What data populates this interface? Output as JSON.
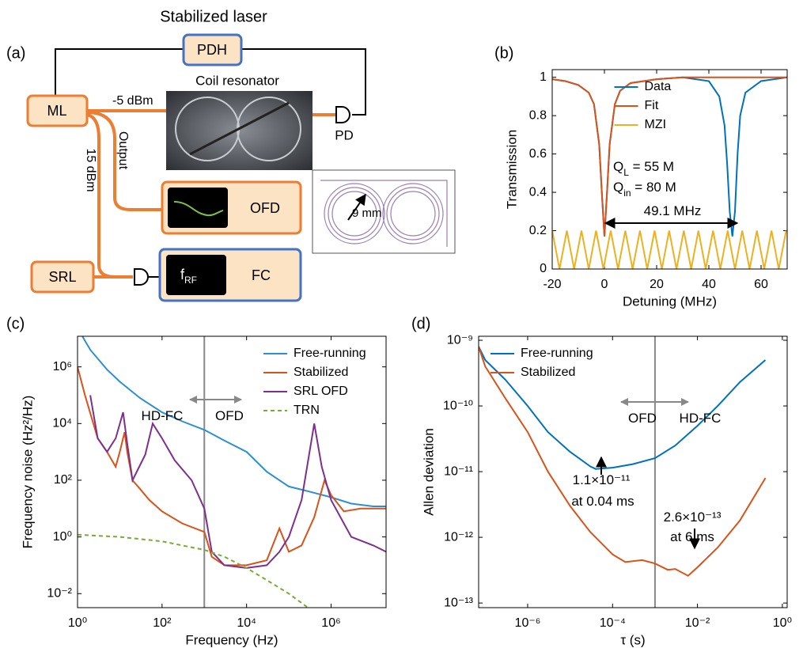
{
  "diagram": {
    "panel": "(a)",
    "title": "Stabilized laser",
    "coil_label": "Coil resonator",
    "nodes": [
      {
        "label": "PDH"
      },
      {
        "label": "ML"
      },
      {
        "label": "SRL"
      },
      {
        "label": "OFD"
      },
      {
        "label": "FC"
      }
    ],
    "labels": [
      "-5 dBm",
      "15 dBm",
      "Output",
      "PD",
      "9 mm"
    ],
    "rf": {
      "text": "f",
      "sub": "RF"
    }
  },
  "chart_data": [
    {
      "type": "line",
      "panel": "(b)",
      "xlabel": "Detuning (MHz)",
      "ylabel": "Transmission",
      "xscale": "linear",
      "yscale": "linear",
      "xlim": [
        -20,
        70
      ],
      "ylim": [
        0,
        1.04
      ],
      "xticks": [
        -20,
        0,
        20,
        40,
        60
      ],
      "yticks": [
        0,
        0.2,
        0.4,
        0.6,
        0.8,
        1
      ],
      "legend": "upper center",
      "series": [
        {
          "name": "Data",
          "color": "#0072bd",
          "x": [
            -20,
            -15,
            -10,
            -6,
            -4,
            -2,
            -1,
            0,
            1,
            2,
            4,
            6,
            10,
            20,
            30,
            40,
            44,
            46,
            47,
            48,
            49,
            50,
            51,
            52,
            54,
            60,
            70
          ],
          "values": [
            0.99,
            0.98,
            0.96,
            0.92,
            0.86,
            0.65,
            0.4,
            0.17,
            0.4,
            0.65,
            0.86,
            0.93,
            0.97,
            0.99,
            1.0,
            0.98,
            0.9,
            0.75,
            0.55,
            0.3,
            0.17,
            0.3,
            0.6,
            0.8,
            0.92,
            0.98,
            1.0
          ]
        },
        {
          "name": "Fit",
          "color": "#d95319",
          "x": [
            -20,
            -15,
            -10,
            -6,
            -4,
            -2,
            -1,
            0,
            1,
            2,
            4,
            6,
            10,
            20,
            30,
            70
          ],
          "values": [
            0.99,
            0.98,
            0.96,
            0.92,
            0.86,
            0.65,
            0.4,
            0.17,
            0.4,
            0.65,
            0.86,
            0.93,
            0.97,
            0.99,
            1.0,
            1.0
          ]
        },
        {
          "name": "MZI",
          "color": "#edb120",
          "x": [
            -20,
            -17.2,
            -14.4,
            -11.6,
            -8.8,
            -6,
            -3.2,
            -0.4,
            2.4,
            5.2,
            8,
            10.8,
            13.6,
            16.4,
            19.2,
            22,
            24.8,
            27.6,
            30.4,
            33.2,
            36,
            38.8,
            41.6,
            44.4,
            47.2,
            50,
            52.8,
            55.6,
            58.4,
            61.2,
            64,
            66.8,
            69.6
          ],
          "values": [
            0.2,
            0,
            0.2,
            0,
            0.2,
            0,
            0.2,
            0,
            0.2,
            0,
            0.2,
            0,
            0.2,
            0,
            0.2,
            0,
            0.2,
            0,
            0.2,
            0,
            0.2,
            0,
            0.2,
            0,
            0.2,
            0,
            0.2,
            0,
            0.2,
            0,
            0.2,
            0,
            0.2
          ]
        }
      ],
      "annotations": [
        {
          "text": "Q",
          "sub": "L",
          "rest": " = 55 M"
        },
        {
          "text": "Q",
          "sub": "in",
          "rest": " = 80 M"
        },
        {
          "text": "49.1 MHz"
        }
      ]
    },
    {
      "type": "line",
      "panel": "(c)",
      "xlabel": "Frequency (Hz)",
      "ylabel": "Frequency noise (Hz²/Hz)",
      "xscale": "log",
      "yscale": "log",
      "xlim": [
        1,
        20000000
      ],
      "ylim": [
        0.0032,
        12000000
      ],
      "xticks": [
        {
          "value": 1,
          "label": "10⁰"
        },
        {
          "value": 100,
          "label": "10²"
        },
        {
          "value": 10000,
          "label": "10⁴"
        },
        {
          "value": 1000000,
          "label": "10⁶"
        }
      ],
      "yticks": [
        {
          "value": 0.01,
          "label": "10⁻²"
        },
        {
          "value": 1,
          "label": "10⁰"
        },
        {
          "value": 100,
          "label": "10²"
        },
        {
          "value": 10000,
          "label": "10⁴"
        },
        {
          "value": 1000000,
          "label": "10⁶"
        }
      ],
      "legend": "upper right",
      "vline": 1000,
      "series": [
        {
          "name": "Free-running",
          "color": "#2b8fd6",
          "x": [
            1.3,
            2,
            5,
            10,
            30,
            100,
            300,
            1000,
            3000,
            10000,
            30000,
            100000,
            300000,
            1000000,
            3000000,
            10000000,
            20000000
          ],
          "values": [
            12000000,
            4000000,
            800000,
            300000,
            80000,
            25000,
            12000,
            6000,
            2500,
            1000,
            200,
            60,
            40,
            25,
            15,
            12,
            12
          ]
        },
        {
          "name": "Stabilized",
          "color": "#d95319",
          "x": [
            1,
            1.5,
            3,
            5,
            8,
            10,
            13,
            15,
            20,
            30,
            50,
            100,
            300,
            1000,
            1500,
            3000,
            10000,
            30000,
            60000,
            100000,
            200000,
            400000,
            700000,
            1000000,
            2000000,
            5000000,
            10000000,
            20000000
          ],
          "values": [
            1000000,
            100000,
            3000,
            1000,
            300,
            1000,
            5000,
            1000,
            100,
            50,
            20,
            8,
            3,
            1.5,
            0.2,
            0.1,
            0.1,
            0.15,
            2,
            0.3,
            0.5,
            5,
            100,
            30,
            8,
            10,
            10,
            10
          ]
        },
        {
          "name": "SRL OFD",
          "color": "#7e2f8e",
          "x": [
            2,
            3,
            5,
            8,
            12,
            15,
            20,
            40,
            60,
            100,
            200,
            500,
            1000,
            1500,
            3000,
            10000,
            30000,
            60000,
            100000,
            200000,
            400000,
            600000,
            1000000,
            3000000,
            10000000,
            20000000
          ],
          "values": [
            100000,
            3000,
            1000,
            3000,
            25000,
            2000,
            100,
            800,
            10000,
            3000,
            500,
            100,
            10,
            0.3,
            0.1,
            0.08,
            0.1,
            0.3,
            1,
            20,
            10000,
            300,
            20,
            1,
            0.5,
            0.3
          ]
        },
        {
          "name": "TRN",
          "color": "#77ac30",
          "linestyle": "dashed",
          "x": [
            1,
            10,
            100,
            1000,
            3000,
            10000,
            30000,
            100000,
            300000
          ],
          "values": [
            1.2,
            1.0,
            0.7,
            0.35,
            0.2,
            0.08,
            0.03,
            0.01,
            0.003
          ]
        }
      ],
      "annotations": [
        {
          "text": "HD-FC"
        },
        {
          "text": "OFD"
        }
      ]
    },
    {
      "type": "line",
      "panel": "(d)",
      "xlabel": "τ (s)",
      "ylabel": "Allen deviation",
      "xscale": "log",
      "yscale": "log",
      "xlim": [
        7e-08,
        1.3
      ],
      "ylim": [
        8.5e-14,
        1.15e-09
      ],
      "xticks": [
        {
          "value": 1e-06,
          "label": "10⁻⁶"
        },
        {
          "value": 0.0001,
          "label": "10⁻⁴"
        },
        {
          "value": 0.01,
          "label": "10⁻²"
        },
        {
          "value": 1,
          "label": "10⁰"
        }
      ],
      "yticks": [
        {
          "value": 1e-13,
          "label": "10⁻¹³"
        },
        {
          "value": 1e-12,
          "label": "10⁻¹²"
        },
        {
          "value": 1e-11,
          "label": "10⁻¹¹"
        },
        {
          "value": 1e-10,
          "label": "10⁻¹⁰"
        },
        {
          "value": 1e-09,
          "label": "10⁻⁹"
        }
      ],
      "legend": "upper left",
      "vline": 0.001,
      "series": [
        {
          "name": "Free-running",
          "color": "#0072bd",
          "x": [
            7e-08,
            1e-07,
            3e-07,
            1e-06,
            3e-06,
            1e-05,
            3e-05,
            4e-05,
            0.0001,
            0.0003,
            0.001,
            0.003,
            0.01,
            0.03,
            0.1,
            0.4
          ],
          "values": [
            8e-10,
            5e-10,
            2.5e-10,
            1e-10,
            4e-11,
            2e-11,
            1.2e-11,
            1.1e-11,
            1.15e-11,
            1.3e-11,
            1.6e-11,
            2.5e-11,
            5e-11,
            1e-10,
            2.3e-10,
            5e-10
          ]
        },
        {
          "name": "Stabilized",
          "color": "#d95319",
          "x": [
            7e-08,
            1e-07,
            3e-07,
            1e-06,
            3e-06,
            1e-05,
            3e-05,
            0.0001,
            0.0002,
            0.0005,
            0.001,
            0.002,
            0.003,
            0.006,
            0.01,
            0.03,
            0.1,
            0.4
          ],
          "values": [
            8e-10,
            4e-10,
            1.3e-10,
            4e-11,
            1e-11,
            3e-12,
            1.2e-12,
            5.5e-13,
            4.2e-13,
            4.5e-13,
            4e-13,
            3.2e-13,
            3.3e-13,
            2.6e-13,
            3.5e-13,
            7e-13,
            1.8e-12,
            8e-12
          ]
        }
      ],
      "annotations": [
        {
          "text": "OFD"
        },
        {
          "text": "HD-FC"
        },
        {
          "text": "1.1×10⁻¹¹"
        },
        {
          "text": "at 0.04 ms"
        },
        {
          "text": "2.6×10⁻¹³"
        },
        {
          "text": "at 6 ms"
        }
      ]
    }
  ]
}
